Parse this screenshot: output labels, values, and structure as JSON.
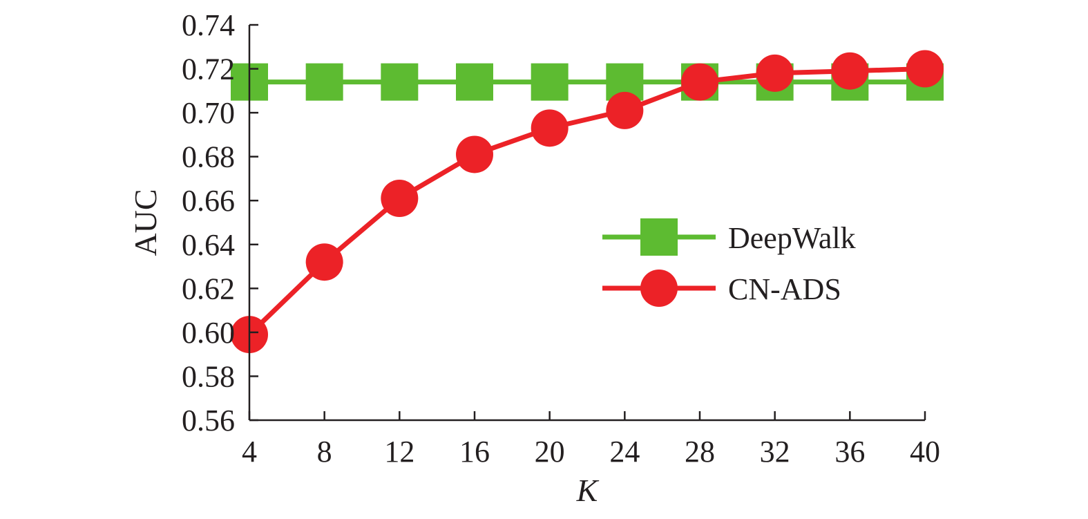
{
  "chart_data": {
    "type": "line",
    "xlabel": "K",
    "ylabel": "AUC",
    "x": [
      4,
      8,
      12,
      16,
      20,
      24,
      28,
      32,
      36,
      40
    ],
    "x_ticks": [
      "4",
      "8",
      "12",
      "16",
      "20",
      "24",
      "28",
      "32",
      "36",
      "40"
    ],
    "y_ticks": [
      "0.56",
      "0.58",
      "0.60",
      "0.62",
      "0.64",
      "0.66",
      "0.68",
      "0.70",
      "0.72",
      "0.74"
    ],
    "xlim": [
      4,
      40
    ],
    "ylim": [
      0.56,
      0.74
    ],
    "grid": false,
    "legend_position": "center-right",
    "series": [
      {
        "name": "DeepWalk",
        "marker": "square",
        "color": "#5dbb31",
        "values": [
          0.714,
          0.714,
          0.714,
          0.714,
          0.714,
          0.714,
          0.714,
          0.714,
          0.714,
          0.714
        ]
      },
      {
        "name": "CN-ADS",
        "marker": "circle",
        "color": "#ec2227",
        "values": [
          0.599,
          0.632,
          0.661,
          0.681,
          0.693,
          0.701,
          0.714,
          0.718,
          0.719,
          0.72
        ]
      }
    ]
  }
}
